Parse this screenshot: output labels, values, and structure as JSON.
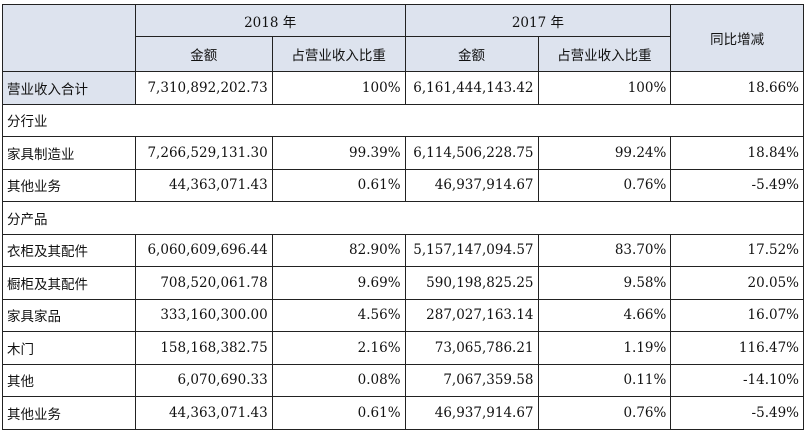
{
  "header": {
    "year_2018": "2018 年",
    "year_2017": "2017 年",
    "amount": "金额",
    "ratio": "占营业收入比重",
    "yoy": "同比增减"
  },
  "rows": [
    {
      "label": "营业收入合计",
      "a2018": "7,310,892,202.73",
      "r2018": "100%",
      "a2017": "6,161,444,143.42",
      "r2017": "100%",
      "yoy": "18.66%"
    },
    {
      "label": "分行业"
    },
    {
      "label": "家具制造业",
      "a2018": "7,266,529,131.30",
      "r2018": "99.39%",
      "a2017": "6,114,506,228.75",
      "r2017": "99.24%",
      "yoy": "18.84%"
    },
    {
      "label": "其他业务",
      "a2018": "44,363,071.43",
      "r2018": "0.61%",
      "a2017": "46,937,914.67",
      "r2017": "0.76%",
      "yoy": "-5.49%"
    },
    {
      "label": "分产品"
    },
    {
      "label": "衣柜及其配件",
      "a2018": "6,060,609,696.44",
      "r2018": "82.90%",
      "a2017": "5,157,147,094.57",
      "r2017": "83.70%",
      "yoy": "17.52%"
    },
    {
      "label": "橱柜及其配件",
      "a2018": "708,520,061.78",
      "r2018": "9.69%",
      "a2017": "590,198,825.25",
      "r2017": "9.58%",
      "yoy": "20.05%"
    },
    {
      "label": "家具家品",
      "a2018": "333,160,300.00",
      "r2018": "4.56%",
      "a2017": "287,027,163.14",
      "r2017": "4.66%",
      "yoy": "16.07%"
    },
    {
      "label": "木门",
      "a2018": "158,168,382.75",
      "r2018": "2.16%",
      "a2017": "73,065,786.21",
      "r2017": "1.19%",
      "yoy": "116.47%"
    },
    {
      "label": "其他",
      "a2018": "6,070,690.33",
      "r2018": "0.08%",
      "a2017": "7,067,359.58",
      "r2017": "0.11%",
      "yoy": "-14.10%"
    },
    {
      "label": "其他业务",
      "a2018": "44,363,071.43",
      "r2018": "0.61%",
      "a2017": "46,937,914.67",
      "r2017": "0.76%",
      "yoy": "-5.49%"
    }
  ]
}
